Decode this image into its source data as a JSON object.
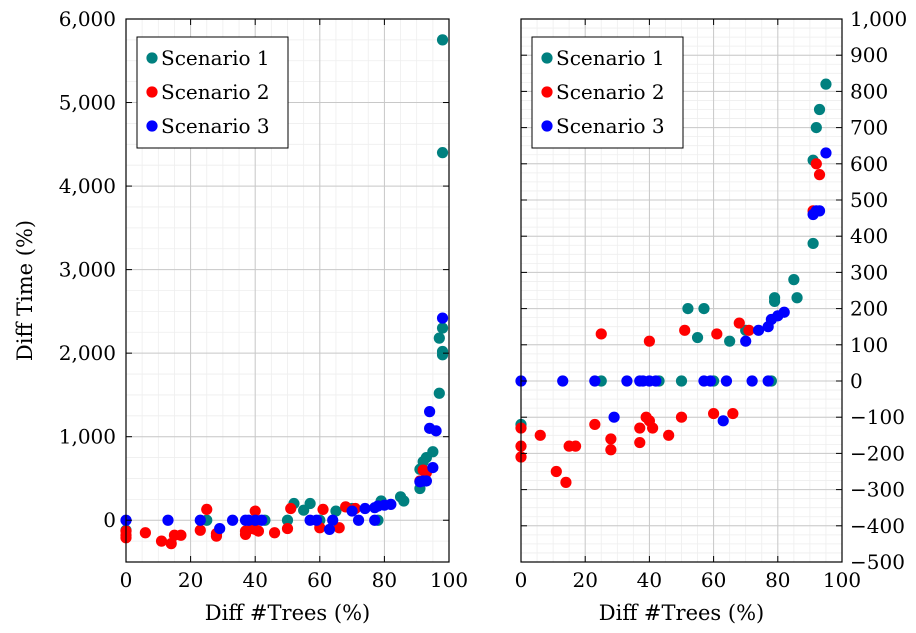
{
  "chart_data": [
    {
      "type": "scatter",
      "xlabel": "Diff #Trees (%)",
      "ylabel": "Diff Time (%)",
      "xlim": [
        0,
        100
      ],
      "ylim": [
        -500,
        6000
      ],
      "xticks": [
        0,
        20,
        40,
        60,
        80,
        100
      ],
      "xtick_labels": [
        "0",
        "20",
        "40",
        "60",
        "80",
        "100"
      ],
      "yticks": [
        0,
        1000,
        2000,
        3000,
        4000,
        5000,
        6000
      ],
      "ytick_labels": [
        "0",
        "1,000",
        "2,000",
        "3,000",
        "4,000",
        "5,000",
        "6,000"
      ],
      "yaxis_side": "left",
      "grid": true,
      "legend_position": "top-left",
      "series": [
        {
          "name": "Scenario 1",
          "color": "#00807f",
          "points": [
            [
              0,
              -120
            ],
            [
              25,
              0
            ],
            [
              43,
              0
            ],
            [
              50,
              0
            ],
            [
              52,
              200
            ],
            [
              55,
              120
            ],
            [
              57,
              200
            ],
            [
              60,
              0
            ],
            [
              65,
              110
            ],
            [
              70,
              140
            ],
            [
              78,
              0
            ],
            [
              79,
              230
            ],
            [
              79,
              220
            ],
            [
              85,
              280
            ],
            [
              86,
              230
            ],
            [
              91,
              380
            ],
            [
              91,
              610
            ],
            [
              92,
              700
            ],
            [
              93,
              750
            ],
            [
              95,
              820
            ],
            [
              97,
              1520
            ],
            [
              97,
              2180
            ],
            [
              98,
              2300
            ],
            [
              98,
              1980
            ],
            [
              98,
              2020
            ],
            [
              98,
              4400
            ],
            [
              98,
              5750
            ]
          ]
        },
        {
          "name": "Scenario 2",
          "color": "#ff0000",
          "points": [
            [
              0,
              -210
            ],
            [
              0,
              -180
            ],
            [
              0,
              -130
            ],
            [
              6,
              -150
            ],
            [
              11,
              -250
            ],
            [
              14,
              -280
            ],
            [
              15,
              -180
            ],
            [
              17,
              -180
            ],
            [
              23,
              -120
            ],
            [
              25,
              130
            ],
            [
              28,
              -190
            ],
            [
              28,
              -160
            ],
            [
              37,
              -170
            ],
            [
              37,
              -130
            ],
            [
              39,
              -100
            ],
            [
              40,
              110
            ],
            [
              40,
              -110
            ],
            [
              41,
              -130
            ],
            [
              46,
              -150
            ],
            [
              50,
              -100
            ],
            [
              51,
              140
            ],
            [
              60,
              -90
            ],
            [
              61,
              130
            ],
            [
              66,
              -90
            ],
            [
              68,
              160
            ],
            [
              71,
              140
            ],
            [
              91,
              470
            ],
            [
              92,
              600
            ],
            [
              93,
              570
            ]
          ]
        },
        {
          "name": "Scenario 3",
          "color": "#0000ff",
          "points": [
            [
              0,
              0
            ],
            [
              13,
              0
            ],
            [
              23,
              0
            ],
            [
              29,
              -100
            ],
            [
              33,
              0
            ],
            [
              37,
              0
            ],
            [
              38,
              0
            ],
            [
              40,
              0
            ],
            [
              42,
              0
            ],
            [
              57,
              0
            ],
            [
              59,
              0
            ],
            [
              63,
              -110
            ],
            [
              64,
              0
            ],
            [
              70,
              110
            ],
            [
              72,
              0
            ],
            [
              74,
              140
            ],
            [
              77,
              0
            ],
            [
              77,
              150
            ],
            [
              78,
              170
            ],
            [
              80,
              180
            ],
            [
              82,
              190
            ],
            [
              91,
              460
            ],
            [
              92,
              470
            ],
            [
              93,
              470
            ],
            [
              94,
              1300
            ],
            [
              94,
              1100
            ],
            [
              95,
              630
            ],
            [
              96,
              1070
            ],
            [
              98,
              2420
            ]
          ]
        }
      ]
    },
    {
      "type": "scatter",
      "xlabel": "Diff #Trees (%)",
      "ylabel": "",
      "xlim": [
        0,
        100
      ],
      "ylim": [
        -500,
        1000
      ],
      "xticks": [
        0,
        20,
        40,
        60,
        80,
        100
      ],
      "xtick_labels": [
        "0",
        "20",
        "40",
        "60",
        "80",
        "100"
      ],
      "yticks": [
        -500,
        -400,
        -300,
        -200,
        -100,
        0,
        100,
        200,
        300,
        400,
        500,
        600,
        700,
        800,
        900,
        1000
      ],
      "ytick_labels": [
        "−500",
        "−400",
        "−300",
        "−200",
        "−100",
        "0",
        "100",
        "200",
        "300",
        "400",
        "500",
        "600",
        "700",
        "800",
        "900",
        "1,000"
      ],
      "yaxis_side": "right",
      "grid": true,
      "legend_position": "top-left",
      "series": [
        {
          "name": "Scenario 1",
          "color": "#00807f",
          "points": [
            [
              0,
              -120
            ],
            [
              25,
              0
            ],
            [
              43,
              0
            ],
            [
              50,
              0
            ],
            [
              52,
              200
            ],
            [
              55,
              120
            ],
            [
              57,
              200
            ],
            [
              60,
              0
            ],
            [
              65,
              110
            ],
            [
              70,
              140
            ],
            [
              78,
              0
            ],
            [
              79,
              230
            ],
            [
              79,
              220
            ],
            [
              85,
              280
            ],
            [
              86,
              230
            ],
            [
              91,
              380
            ],
            [
              91,
              610
            ],
            [
              92,
              700
            ],
            [
              93,
              750
            ],
            [
              95,
              820
            ]
          ]
        },
        {
          "name": "Scenario 2",
          "color": "#ff0000",
          "points": [
            [
              0,
              -210
            ],
            [
              0,
              -180
            ],
            [
              0,
              -130
            ],
            [
              6,
              -150
            ],
            [
              11,
              -250
            ],
            [
              14,
              -280
            ],
            [
              15,
              -180
            ],
            [
              17,
              -180
            ],
            [
              23,
              -120
            ],
            [
              25,
              130
            ],
            [
              28,
              -190
            ],
            [
              28,
              -160
            ],
            [
              37,
              -170
            ],
            [
              37,
              -130
            ],
            [
              39,
              -100
            ],
            [
              40,
              110
            ],
            [
              40,
              -110
            ],
            [
              41,
              -130
            ],
            [
              46,
              -150
            ],
            [
              50,
              -100
            ],
            [
              51,
              140
            ],
            [
              60,
              -90
            ],
            [
              61,
              130
            ],
            [
              66,
              -90
            ],
            [
              68,
              160
            ],
            [
              71,
              140
            ],
            [
              91,
              470
            ],
            [
              92,
              600
            ],
            [
              93,
              570
            ]
          ]
        },
        {
          "name": "Scenario 3",
          "color": "#0000ff",
          "points": [
            [
              0,
              0
            ],
            [
              13,
              0
            ],
            [
              23,
              0
            ],
            [
              29,
              -100
            ],
            [
              33,
              0
            ],
            [
              37,
              0
            ],
            [
              38,
              0
            ],
            [
              40,
              0
            ],
            [
              42,
              0
            ],
            [
              57,
              0
            ],
            [
              59,
              0
            ],
            [
              63,
              -110
            ],
            [
              64,
              0
            ],
            [
              70,
              110
            ],
            [
              72,
              0
            ],
            [
              74,
              140
            ],
            [
              77,
              0
            ],
            [
              77,
              150
            ],
            [
              78,
              170
            ],
            [
              80,
              180
            ],
            [
              82,
              190
            ],
            [
              91,
              460
            ],
            [
              92,
              470
            ],
            [
              93,
              470
            ],
            [
              95,
              630
            ]
          ]
        }
      ]
    }
  ]
}
